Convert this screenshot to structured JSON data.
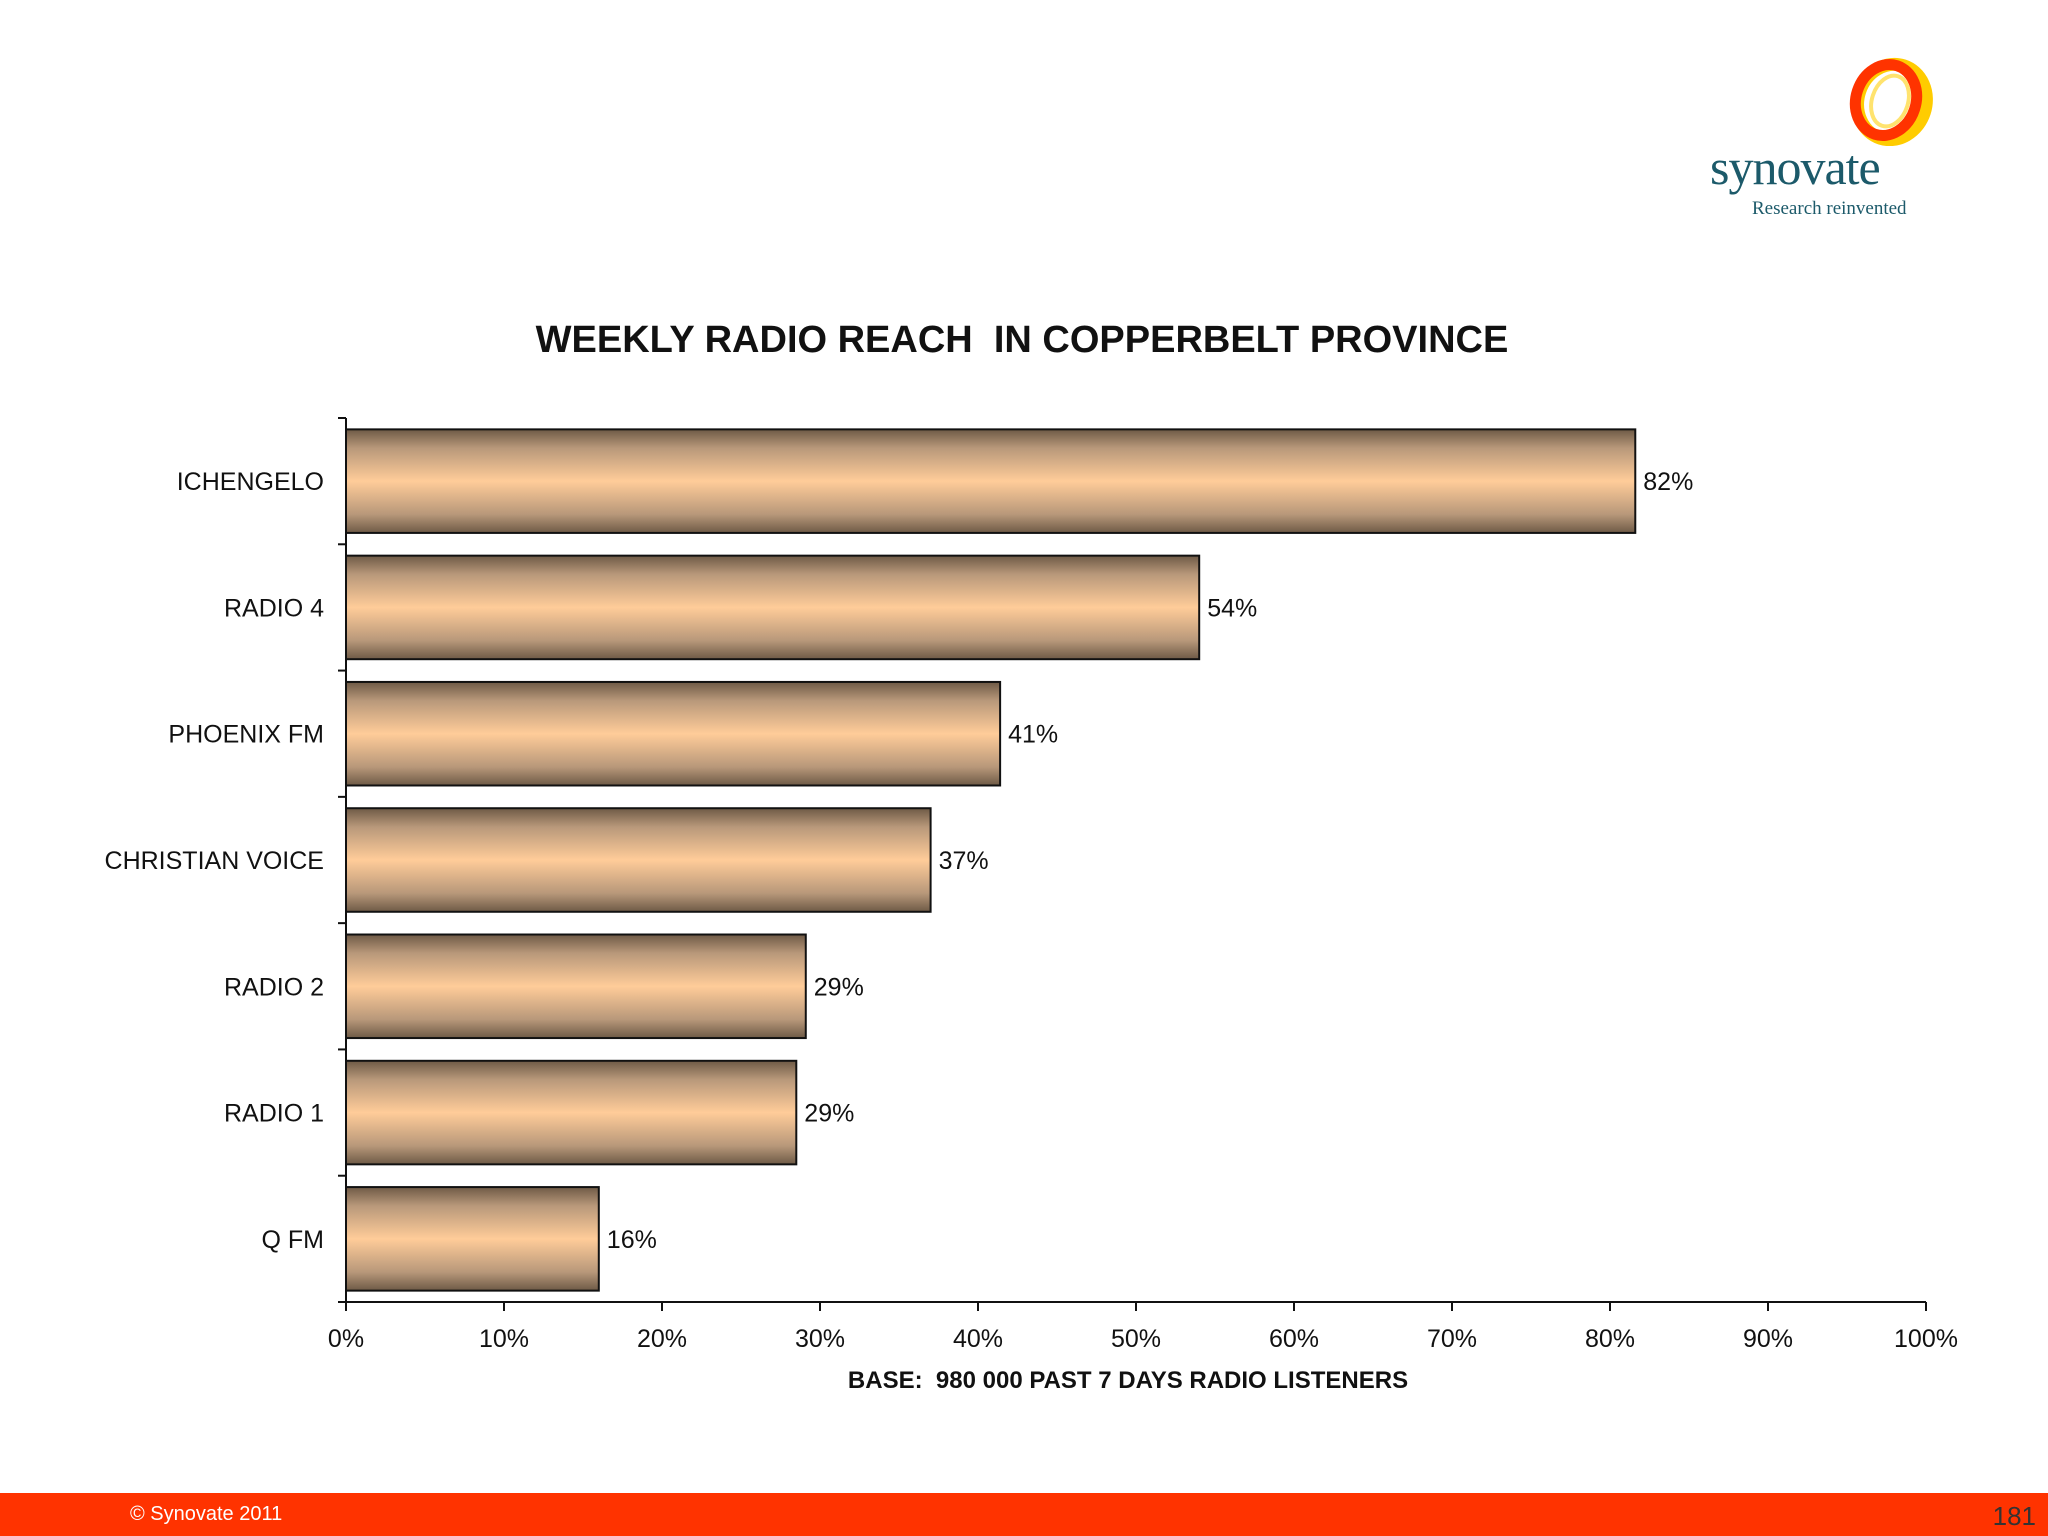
{
  "brand": {
    "name": "synovate",
    "tagline": "Research reinvented",
    "colors": {
      "ring_outer": "#ff3300",
      "ring_inner": "#ffcc00",
      "text": "#1c5a6a"
    }
  },
  "footer": {
    "copyright": "© Synovate 2011",
    "page_number": "181",
    "color": "#ff3300"
  },
  "chart_data": {
    "type": "bar",
    "orientation": "horizontal",
    "title": "WEEKLY RADIO REACH  IN COPPERBELT PROVINCE",
    "xlabel": "BASE:  980 000 PAST 7 DAYS RADIO LISTENERS",
    "ylabel": "",
    "categories": [
      "ICHENGELO",
      "RADIO 4",
      "PHOENIX FM",
      "CHRISTIAN VOICE",
      "RADIO 2",
      "RADIO 1",
      "Q FM"
    ],
    "values": [
      81.6,
      54,
      41.4,
      37,
      29.1,
      28.5,
      16
    ],
    "data_labels": [
      "82%",
      "54%",
      "41%",
      "37%",
      "29%",
      "29%",
      "16%"
    ],
    "xlim": [
      0,
      100
    ],
    "xticks": [
      0,
      10,
      20,
      30,
      40,
      50,
      60,
      70,
      80,
      90,
      100
    ],
    "xtick_labels": [
      "0%",
      "10%",
      "20%",
      "30%",
      "40%",
      "50%",
      "60%",
      "70%",
      "80%",
      "90%",
      "100%"
    ],
    "grid": false,
    "legend": "none",
    "bar_color": "#ffc896",
    "bar_shade": "#6e5a46"
  }
}
